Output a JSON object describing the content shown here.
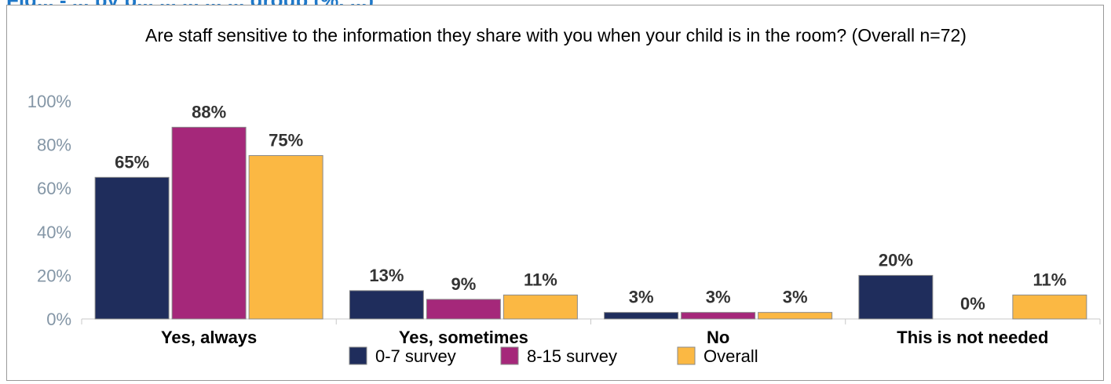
{
  "figure_title": "Fig... - ... by p... ... ... ... ... group (%, ...)",
  "chart_data": {
    "type": "bar",
    "title": "Are staff sensitive to the information they share with you when your child is in the room? (Overall n=72)",
    "categories": [
      "Yes, always",
      "Yes, sometimes",
      "No",
      "This is not needed"
    ],
    "series": [
      {
        "name": "0-7 survey",
        "color": "#1f2d5c",
        "values": [
          65,
          13,
          3,
          20
        ],
        "labels": [
          "65%",
          "13%",
          "3%",
          "20%"
        ]
      },
      {
        "name": "8-15 survey",
        "color": "#a5287a",
        "values": [
          88,
          9,
          3,
          0
        ],
        "labels": [
          "88%",
          "9%",
          "3%",
          "0%"
        ]
      },
      {
        "name": "Overall",
        "color": "#fbb843",
        "values": [
          75,
          11,
          3,
          11
        ],
        "labels": [
          "75%",
          "11%",
          "3%",
          "11%"
        ]
      }
    ],
    "ylim": [
      0,
      100
    ],
    "yticks": [
      0,
      20,
      40,
      60,
      80,
      100
    ],
    "ytick_labels": [
      "0%",
      "20%",
      "40%",
      "60%",
      "80%",
      "100%"
    ],
    "grid": false,
    "legend_position": "bottom",
    "xlabel": "",
    "ylabel": ""
  }
}
